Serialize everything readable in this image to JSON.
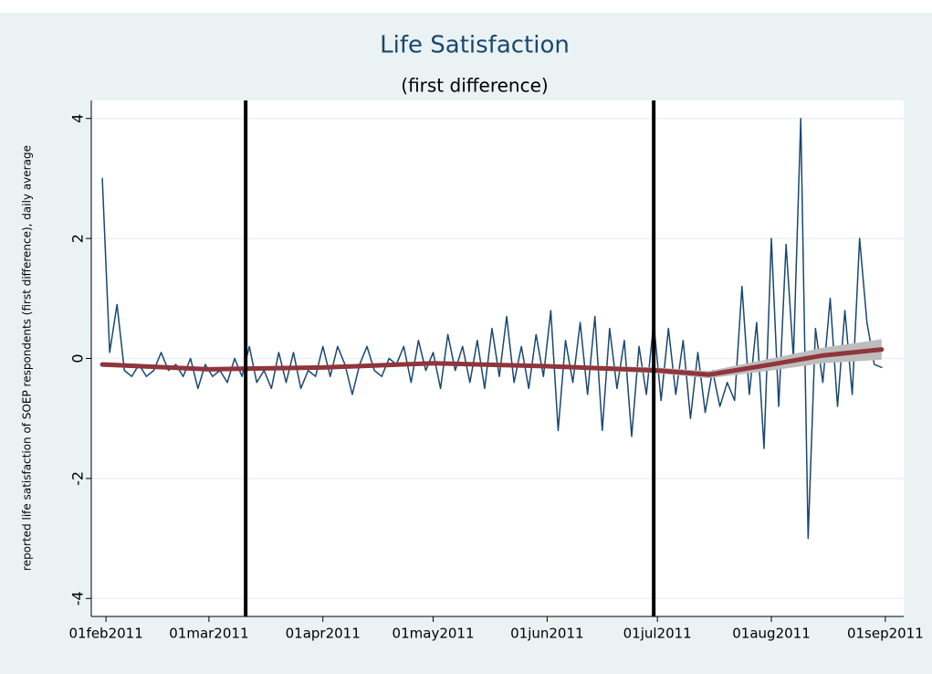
{
  "chart_data": {
    "type": "line",
    "title": "Life Satisfaction",
    "subtitle": "(first difference)",
    "y_label": "reported life satisfaction of SOEP respondents (first difference), daily average",
    "xlim": [
      "2011-01-28",
      "2011-09-06"
    ],
    "xticks": [
      {
        "value": "2011-02-01",
        "label": "01feb2011"
      },
      {
        "value": "2011-03-01",
        "label": "01mar2011"
      },
      {
        "value": "2011-04-01",
        "label": "01apr2011"
      },
      {
        "value": "2011-05-01",
        "label": "01may2011"
      },
      {
        "value": "2011-06-01",
        "label": "01jun2011"
      },
      {
        "value": "2011-07-01",
        "label": "01jul2011"
      },
      {
        "value": "2011-08-01",
        "label": "01aug2011"
      },
      {
        "value": "2011-09-01",
        "label": "01sep2011"
      }
    ],
    "ylim": [
      -4.3,
      4.3
    ],
    "yticks": [
      -4,
      -2,
      0,
      2,
      4
    ],
    "grid": true,
    "reference_lines": [
      "2011-03-11",
      "2011-06-30"
    ],
    "series": [
      {
        "kind": "raw",
        "color": "#1a476f",
        "x": [
          "2011-01-31",
          "2011-02-02",
          "2011-02-04",
          "2011-02-06",
          "2011-02-08",
          "2011-02-10",
          "2011-02-12",
          "2011-02-14",
          "2011-02-16",
          "2011-02-18",
          "2011-02-20",
          "2011-02-22",
          "2011-02-24",
          "2011-02-26",
          "2011-02-28",
          "2011-03-02",
          "2011-03-04",
          "2011-03-06",
          "2011-03-08",
          "2011-03-10",
          "2011-03-12",
          "2011-03-14",
          "2011-03-16",
          "2011-03-18",
          "2011-03-20",
          "2011-03-22",
          "2011-03-24",
          "2011-03-26",
          "2011-03-28",
          "2011-03-30",
          "2011-04-01",
          "2011-04-03",
          "2011-04-05",
          "2011-04-07",
          "2011-04-09",
          "2011-04-11",
          "2011-04-13",
          "2011-04-15",
          "2011-04-17",
          "2011-04-19",
          "2011-04-21",
          "2011-04-23",
          "2011-04-25",
          "2011-04-27",
          "2011-04-29",
          "2011-05-01",
          "2011-05-03",
          "2011-05-05",
          "2011-05-07",
          "2011-05-09",
          "2011-05-11",
          "2011-05-13",
          "2011-05-15",
          "2011-05-17",
          "2011-05-19",
          "2011-05-21",
          "2011-05-23",
          "2011-05-25",
          "2011-05-27",
          "2011-05-29",
          "2011-05-31",
          "2011-06-02",
          "2011-06-04",
          "2011-06-06",
          "2011-06-08",
          "2011-06-10",
          "2011-06-12",
          "2011-06-14",
          "2011-06-16",
          "2011-06-18",
          "2011-06-20",
          "2011-06-22",
          "2011-06-24",
          "2011-06-26",
          "2011-06-28",
          "2011-06-30",
          "2011-07-02",
          "2011-07-04",
          "2011-07-06",
          "2011-07-08",
          "2011-07-10",
          "2011-07-12",
          "2011-07-14",
          "2011-07-16",
          "2011-07-18",
          "2011-07-20",
          "2011-07-22",
          "2011-07-24",
          "2011-07-26",
          "2011-07-28",
          "2011-07-30",
          "2011-08-01",
          "2011-08-03",
          "2011-08-05",
          "2011-08-07",
          "2011-08-09",
          "2011-08-11",
          "2011-08-13",
          "2011-08-15",
          "2011-08-17",
          "2011-08-19",
          "2011-08-21",
          "2011-08-23",
          "2011-08-25",
          "2011-08-27",
          "2011-08-29",
          "2011-08-31"
        ],
        "values": [
          3.0,
          0.1,
          0.9,
          -0.2,
          -0.3,
          -0.1,
          -0.3,
          -0.2,
          0.1,
          -0.2,
          -0.1,
          -0.3,
          0.0,
          -0.5,
          -0.1,
          -0.3,
          -0.2,
          -0.4,
          0.0,
          -0.3,
          0.2,
          -0.4,
          -0.2,
          -0.5,
          0.1,
          -0.4,
          0.1,
          -0.5,
          -0.2,
          -0.3,
          0.2,
          -0.3,
          0.2,
          -0.1,
          -0.6,
          -0.1,
          0.2,
          -0.2,
          -0.3,
          0.0,
          -0.1,
          0.2,
          -0.4,
          0.3,
          -0.2,
          0.1,
          -0.5,
          0.4,
          -0.2,
          0.2,
          -0.4,
          0.3,
          -0.5,
          0.5,
          -0.3,
          0.7,
          -0.4,
          0.2,
          -0.5,
          0.4,
          -0.3,
          0.8,
          -1.2,
          0.3,
          -0.4,
          0.6,
          -0.6,
          0.7,
          -1.2,
          0.5,
          -0.5,
          0.3,
          -1.3,
          0.2,
          -0.6,
          0.6,
          -0.7,
          0.5,
          -0.6,
          0.3,
          -1.0,
          0.1,
          -0.9,
          -0.2,
          -0.8,
          -0.4,
          -0.7,
          1.2,
          -0.6,
          0.6,
          -1.5,
          2.0,
          -0.8,
          1.9,
          0.0,
          4.0,
          -3.0,
          0.5,
          -0.4,
          1.0,
          -0.8,
          0.8,
          -0.6,
          2.0,
          0.6,
          -0.1,
          -0.15
        ]
      },
      {
        "kind": "smooth",
        "color": "#90353b",
        "band_color": "#bdbdbd",
        "x": [
          "2011-01-31",
          "2011-03-01",
          "2011-04-01",
          "2011-05-01",
          "2011-06-01",
          "2011-07-01",
          "2011-07-15",
          "2011-08-01",
          "2011-08-15",
          "2011-08-31"
        ],
        "values": [
          -0.1,
          -0.18,
          -0.15,
          -0.08,
          -0.13,
          -0.2,
          -0.27,
          -0.1,
          0.05,
          0.15
        ],
        "lower": [
          -0.14,
          -0.21,
          -0.18,
          -0.11,
          -0.16,
          -0.25,
          -0.33,
          -0.2,
          -0.08,
          -0.02
        ],
        "upper": [
          -0.06,
          -0.15,
          -0.12,
          -0.05,
          -0.1,
          -0.15,
          -0.21,
          0.0,
          0.18,
          0.32
        ]
      }
    ]
  }
}
